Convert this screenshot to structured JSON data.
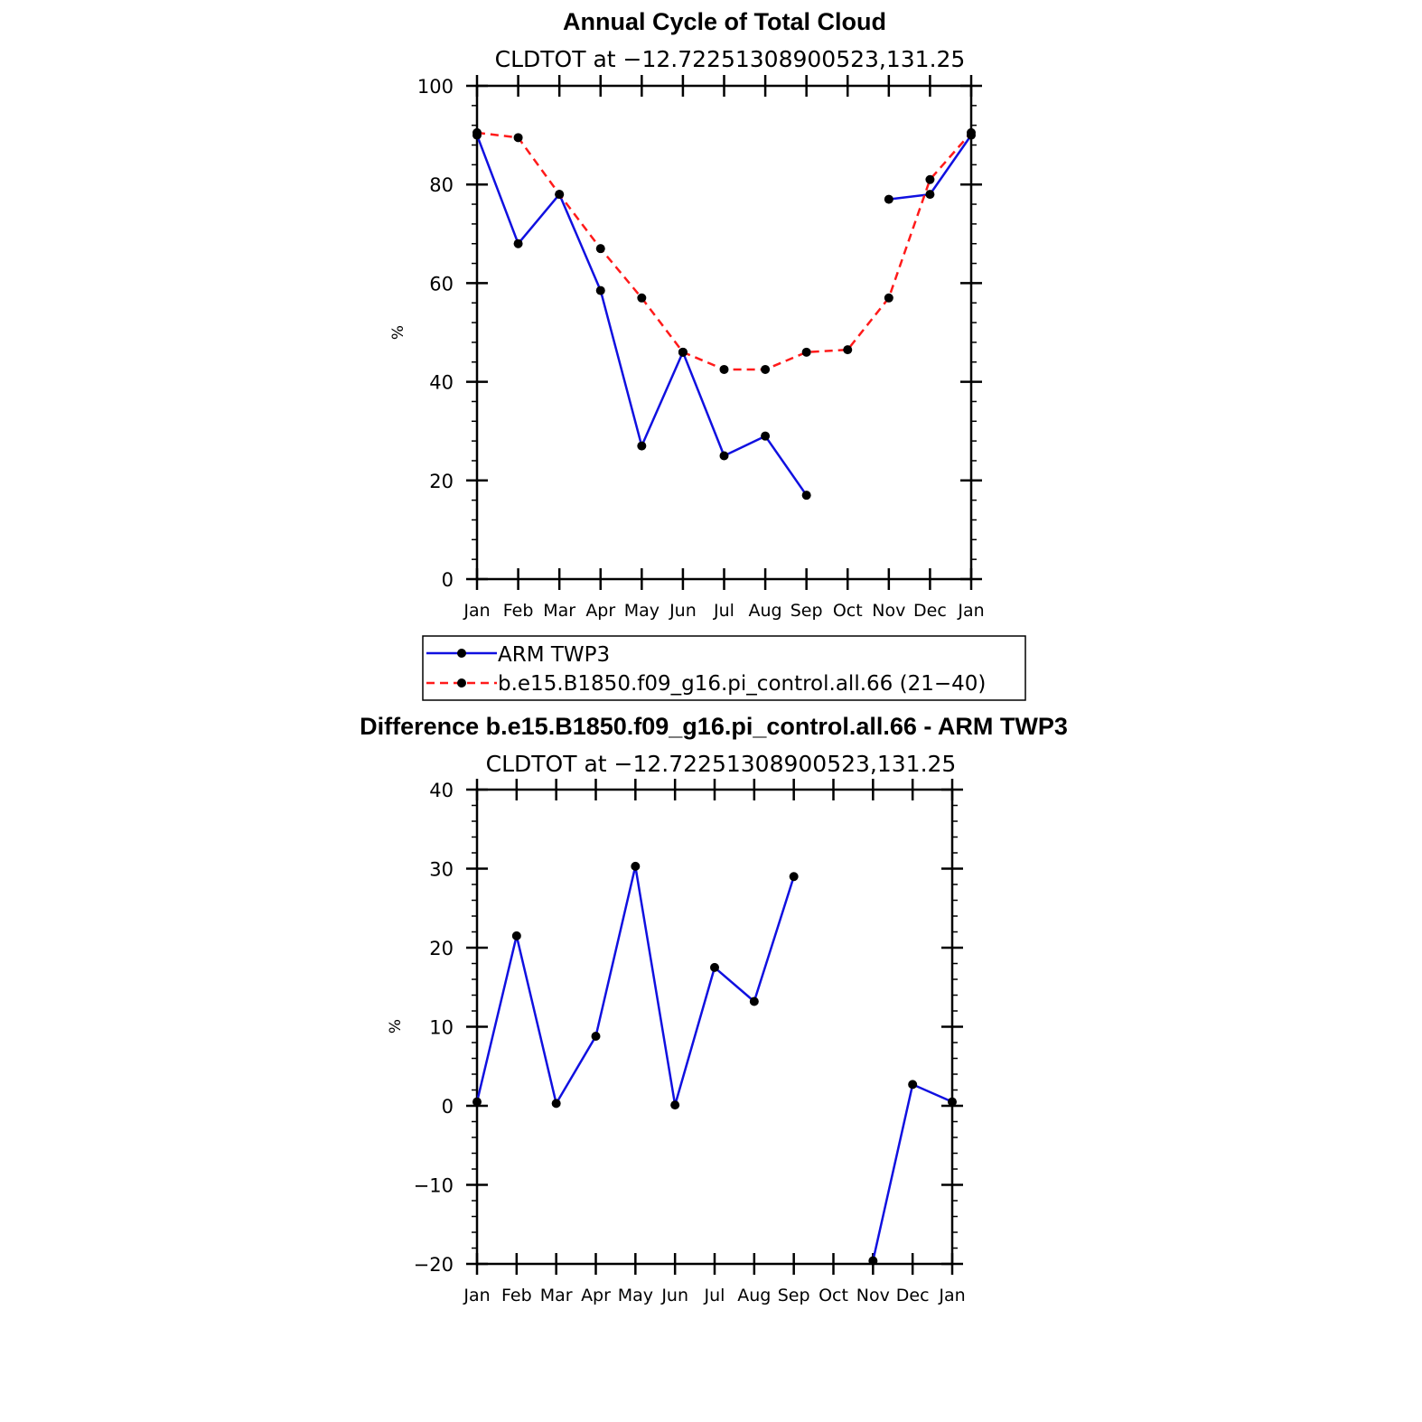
{
  "chart_data": [
    {
      "type": "line",
      "title": "Annual Cycle of Total Cloud",
      "subtitle": "CLDTOT at −12.72251308900523,131.25",
      "ylabel": "%",
      "xlabel": "",
      "categories": [
        "Jan",
        "Feb",
        "Mar",
        "Apr",
        "May",
        "Jun",
        "Jul",
        "Aug",
        "Sep",
        "Oct",
        "Nov",
        "Dec",
        "Jan"
      ],
      "ylim": [
        0,
        100
      ],
      "yticks": [
        0,
        20,
        40,
        60,
        80,
        100
      ],
      "ytick_labels": [
        "0",
        "20",
        "40",
        "60",
        "80",
        "100"
      ],
      "series": [
        {
          "name": "ARM TWP3",
          "color": "#1010e0",
          "dash": "solid",
          "values": [
            90,
            68,
            78,
            58.5,
            27,
            46,
            25,
            29,
            17,
            null,
            77,
            78,
            90
          ]
        },
        {
          "name": "b.e15.B1850.f09_g16.pi_control.all.66 (21−40)",
          "color": "#ff1a1a",
          "dash": "dashed",
          "values": [
            90.5,
            89.5,
            78,
            67,
            57,
            46,
            42.5,
            42.5,
            46,
            46.5,
            57,
            81,
            90.5
          ]
        }
      ],
      "legend_position": "bottom"
    },
    {
      "type": "line",
      "title": "Difference b.e15.B1850.f09_g16.pi_control.all.66 - ARM TWP3",
      "subtitle": "CLDTOT at −12.72251308900523,131.25",
      "ylabel": "%",
      "xlabel": "",
      "categories": [
        "Jan",
        "Feb",
        "Mar",
        "Apr",
        "May",
        "Jun",
        "Jul",
        "Aug",
        "Sep",
        "Oct",
        "Nov",
        "Dec",
        "Jan"
      ],
      "ylim": [
        -20,
        40
      ],
      "yticks": [
        -20,
        -10,
        0,
        10,
        20,
        30,
        40
      ],
      "ytick_labels": [
        "−20",
        "−10",
        "0",
        "10",
        "20",
        "30",
        "40"
      ],
      "series": [
        {
          "color": "#1010e0",
          "dash": "solid",
          "values": [
            0.5,
            21.5,
            0.3,
            8.8,
            30.3,
            0.1,
            17.5,
            13.2,
            29,
            null,
            -19.6,
            2.7,
            0.5
          ]
        }
      ]
    }
  ]
}
